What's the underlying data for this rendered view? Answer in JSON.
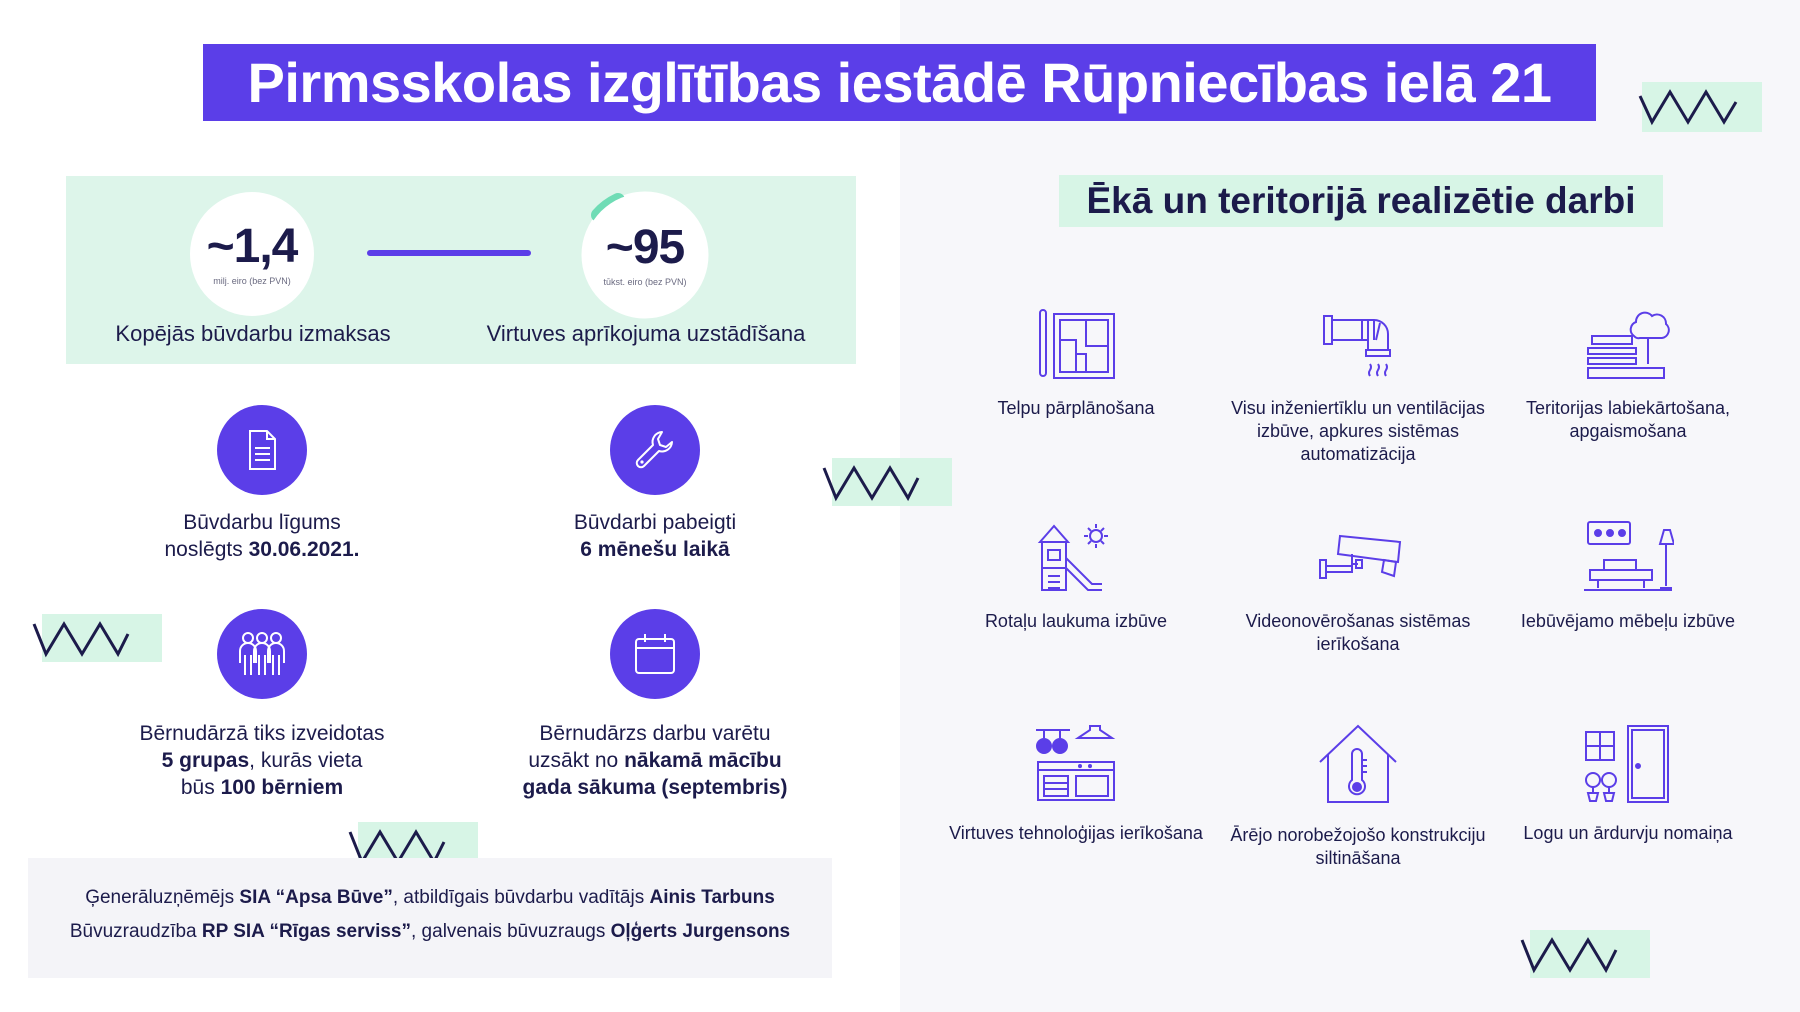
{
  "title": "Pirmsskolas izglītības iestādē Rūpniecības ielā 21",
  "costs": [
    {
      "value": "~1,4",
      "unit": "milj. eiro (bez PVN)",
      "label": "Kopējās būvdarbu izmaksas"
    },
    {
      "value": "~95",
      "unit": "tūkst. eiro (bez PVN)",
      "label": "Virtuves aprīkojuma uzstādīšana"
    }
  ],
  "facts": [
    {
      "icon": "document-icon",
      "line1": "Būvdarbu līgums",
      "line2_pre": "noslēgts ",
      "line2_bold": "30.06.2021.",
      "line2_post": ""
    },
    {
      "icon": "wrench-icon",
      "line1": "Būvdarbi pabeigti",
      "line2_pre": "",
      "line2_bold": "6 mēnešu laikā",
      "line2_post": ""
    },
    {
      "icon": "people-icon",
      "line1": "Bērnudārzā tiks izveidotas",
      "line2_bold": "5 grupas",
      "line2_post": ", kurās vieta",
      "line3_pre": "būs ",
      "line3_bold": "100 bērniem"
    },
    {
      "icon": "calendar-icon",
      "line1": "Bērnudārzs darbu varētu",
      "line2_pre": "uzsākt no ",
      "line2_bold": "nākamā mācību",
      "line3_bold": "gada sākuma (septembris)"
    }
  ],
  "credits": {
    "line1": {
      "p1": "Ģenerāluzņēmējs ",
      "b1": "SIA “Apsa Būve”",
      "p2": ", atbildīgais būvdarbu vadītājs ",
      "b2": "Ainis Tarbuns"
    },
    "line2": {
      "p1": "Būvuzraudzība ",
      "b1": "RP SIA “Rīgas serviss”",
      "p2": ", galvenais būvuzraugs ",
      "b2": "Oļģerts Jurgensons"
    }
  },
  "works_title": "Ēkā un teritorijā realizētie darbi",
  "works": [
    {
      "icon": "floor-plan-icon",
      "label": "Telpu pārplānošana"
    },
    {
      "icon": "ventilation-duct-icon",
      "label": "Visu inženiertīklu un ventilācijas izbūve, apkures sistēmas automatizācija"
    },
    {
      "icon": "park-bench-tree-icon",
      "label": "Teritorijas labiekārtošana, apgaismošana"
    },
    {
      "icon": "playground-icon",
      "label": "Rotaļu laukuma izbūve"
    },
    {
      "icon": "security-camera-icon",
      "label": "Videonovērošanas sistēmas ierīkošana"
    },
    {
      "icon": "furniture-icon",
      "label": "Iebūvējamo mēbeļu izbūve"
    },
    {
      "icon": "kitchen-icon",
      "label": "Virtuves tehnoloģijas ierīkošana"
    },
    {
      "icon": "house-thermometer-icon",
      "label": "Ārējo norobežojošo konstrukciju siltināšana"
    },
    {
      "icon": "window-door-icon",
      "label": "Logu un ārdurvju nomaiņa"
    }
  ],
  "colors": {
    "primary": "#5b3ee8",
    "mint": "#d7f5e6",
    "dark": "#1c1b4b"
  }
}
